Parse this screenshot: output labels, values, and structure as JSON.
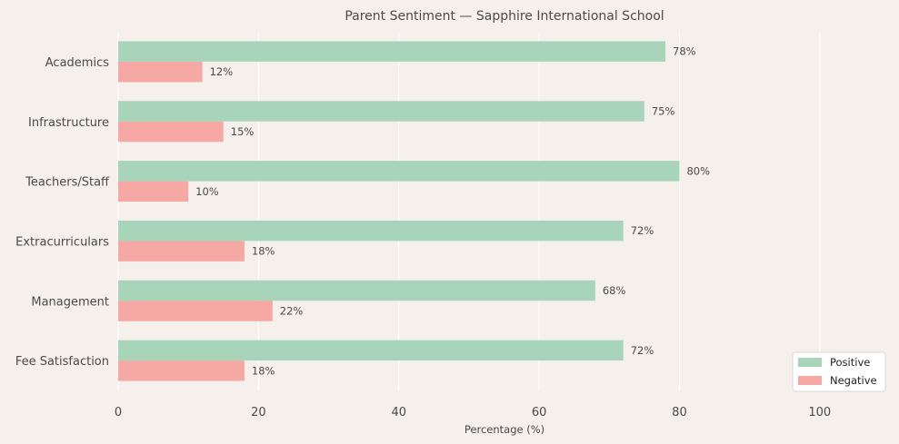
{
  "chart_data": {
    "type": "bar",
    "orientation": "horizontal",
    "title": "Parent Sentiment — Sapphire International School",
    "xlabel": "Percentage (%)",
    "ylabel": "",
    "xlim": [
      0,
      110
    ],
    "xticks": [
      0,
      20,
      40,
      60,
      80,
      100
    ],
    "grid": "vertical",
    "legend_position": "bottom-right",
    "categories": [
      "Fee Satisfaction",
      "Management",
      "Extracurriculars",
      "Teachers/Staff",
      "Infrastructure",
      "Academics"
    ],
    "value_label_suffix": "%",
    "series": [
      {
        "name": "Positive",
        "color": "#a8d5ba",
        "values": [
          72,
          68,
          72,
          80,
          75,
          78
        ]
      },
      {
        "name": "Negative",
        "color": "#f5a8a4",
        "values": [
          18,
          22,
          18,
          10,
          15,
          12
        ]
      }
    ],
    "colors": {
      "background": "#f5f0ec",
      "grid": "#ffffff",
      "text": "#4a4a4a"
    }
  }
}
